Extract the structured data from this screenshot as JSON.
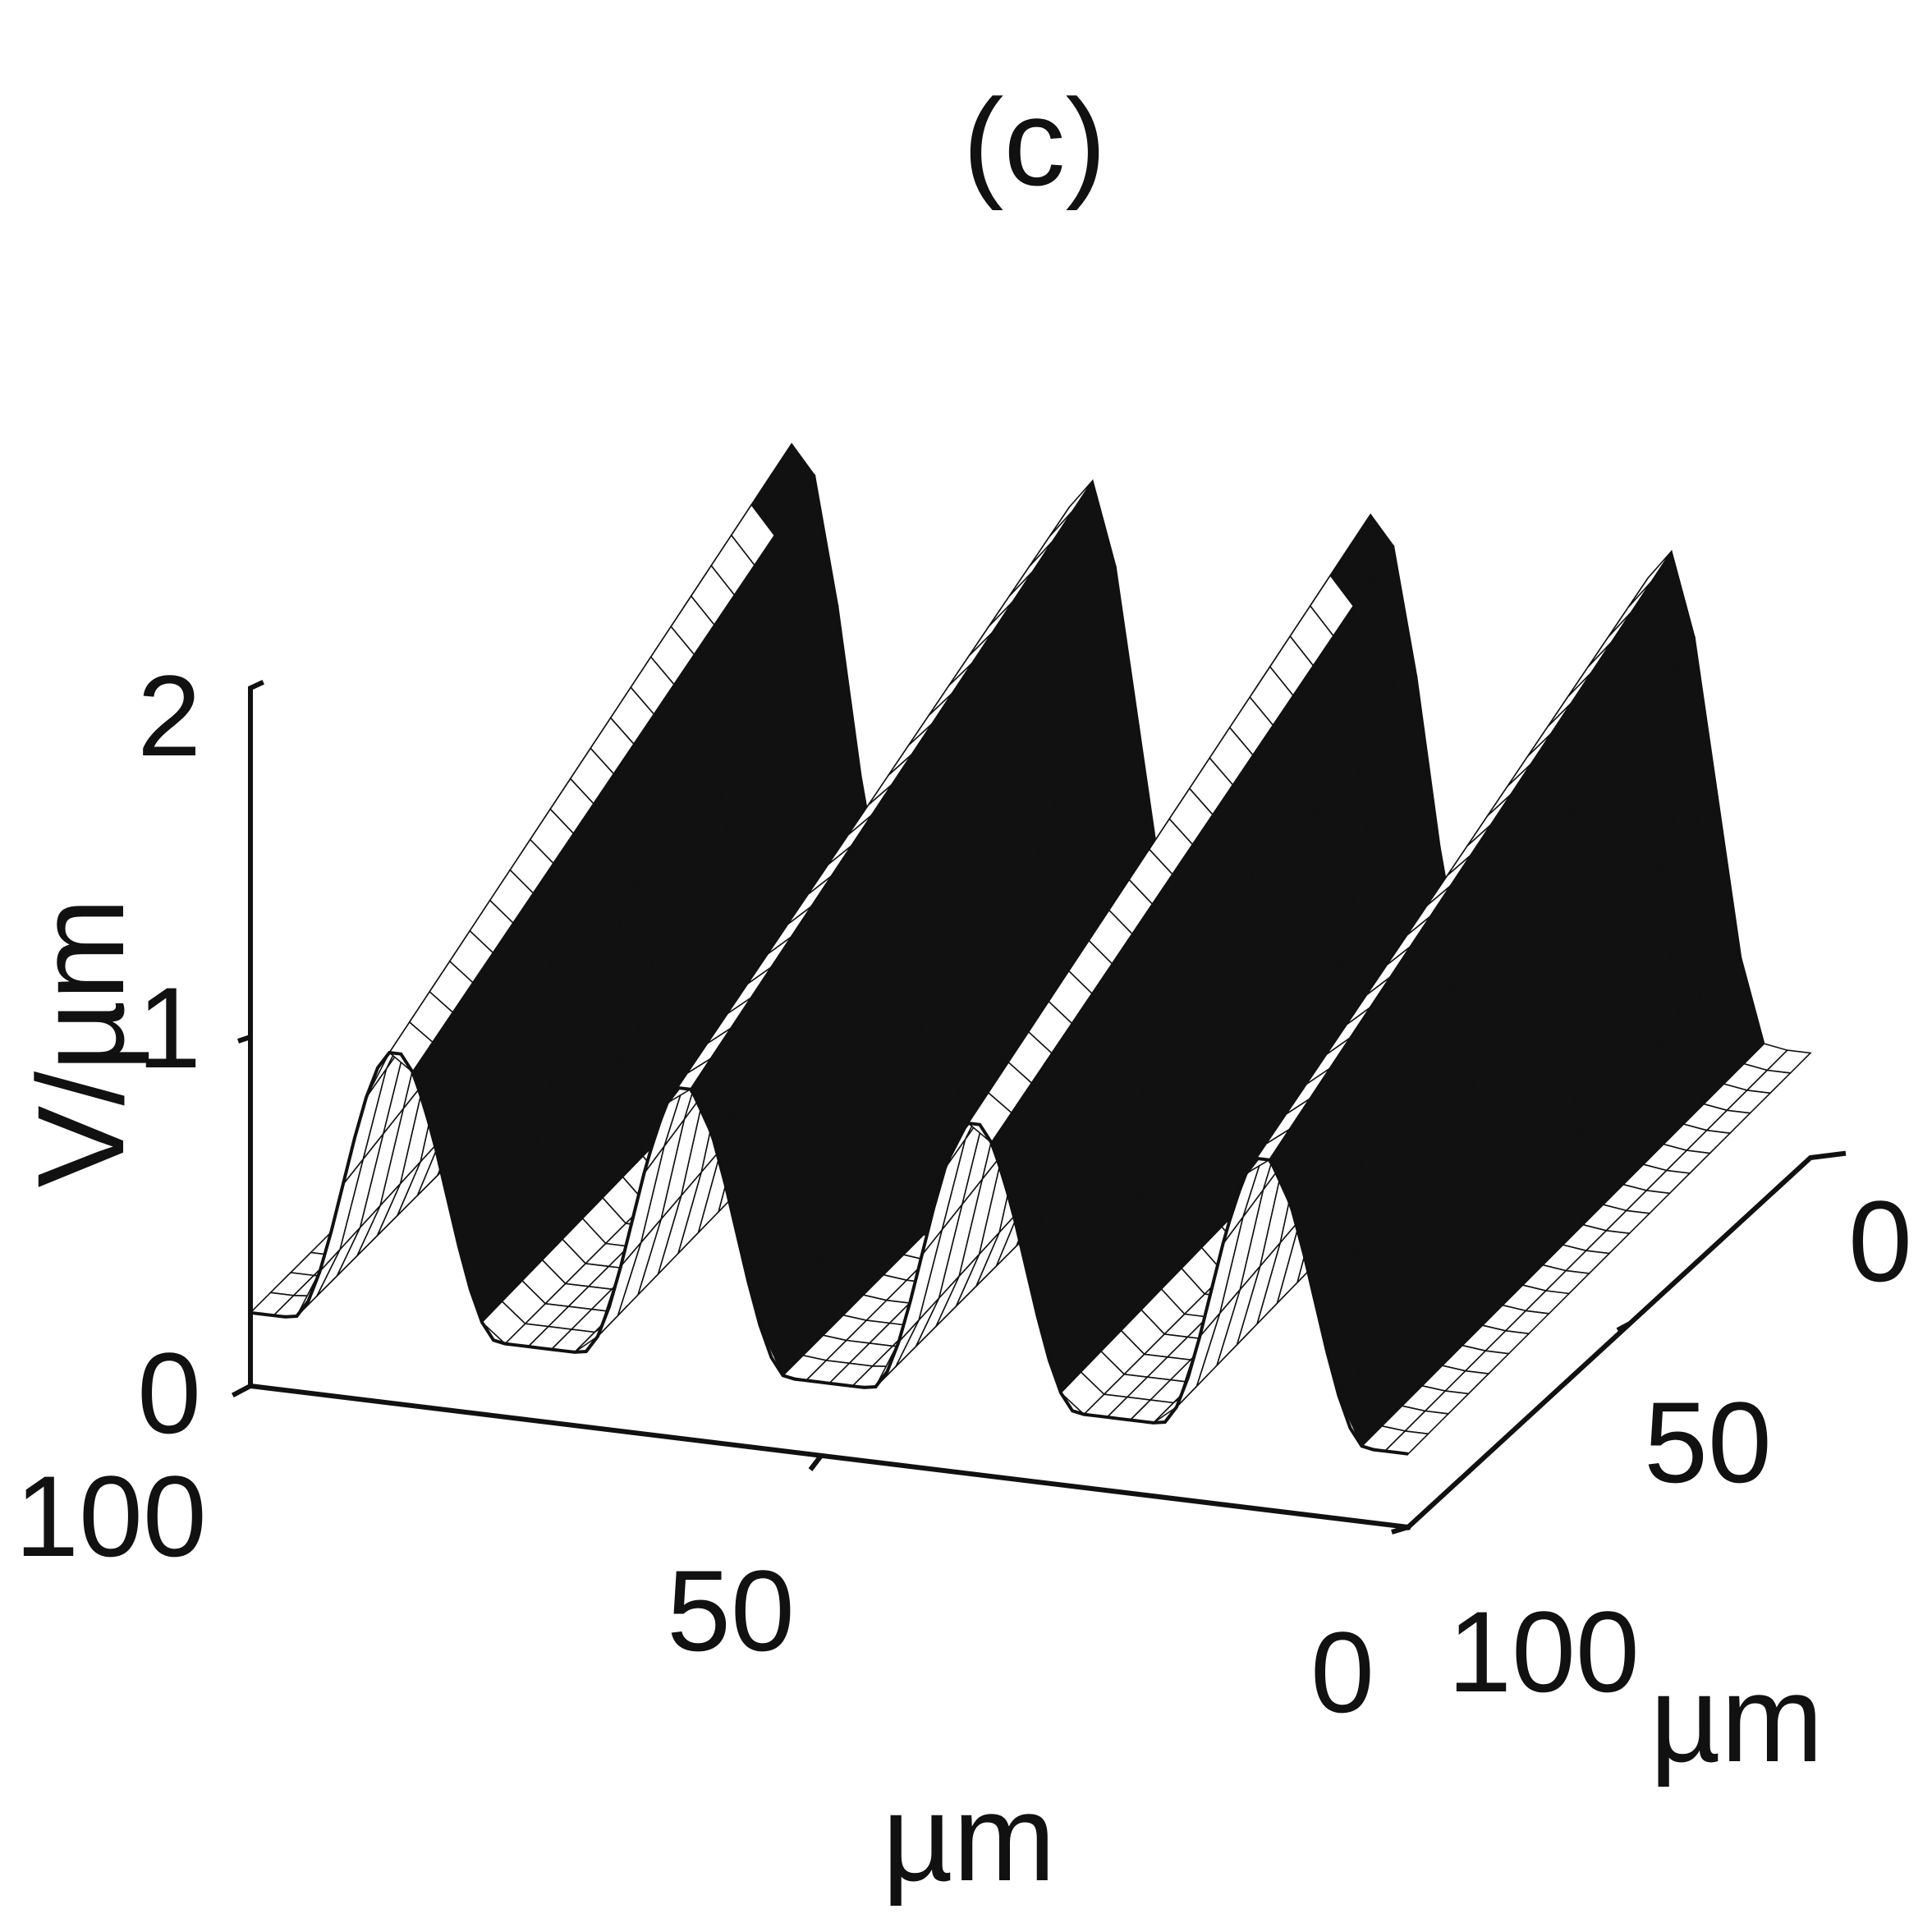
{
  "panel_label": "(c)",
  "chart_data": {
    "type": "surface",
    "panel": "(c)",
    "zlabel": "V/µm",
    "xlabel": "µm",
    "ylabel": "µm",
    "zlim": [
      0,
      2
    ],
    "xlim": [
      0,
      100
    ],
    "ylim": [
      0,
      100
    ],
    "z_ticks": [
      "0",
      "1",
      "2"
    ],
    "x_ticks": [
      "100",
      "50",
      "0"
    ],
    "y_ticks": [
      "0",
      "50",
      "100"
    ],
    "ridges": {
      "count": 4,
      "x_positions": [
        12.5,
        37.5,
        62.5,
        87.5
      ],
      "front_peak": 1.1,
      "back_peak": 1.7,
      "base": 0.3
    },
    "colors": {
      "ink": "#111111",
      "background": "#ffffff",
      "shadow": "#111111"
    }
  }
}
